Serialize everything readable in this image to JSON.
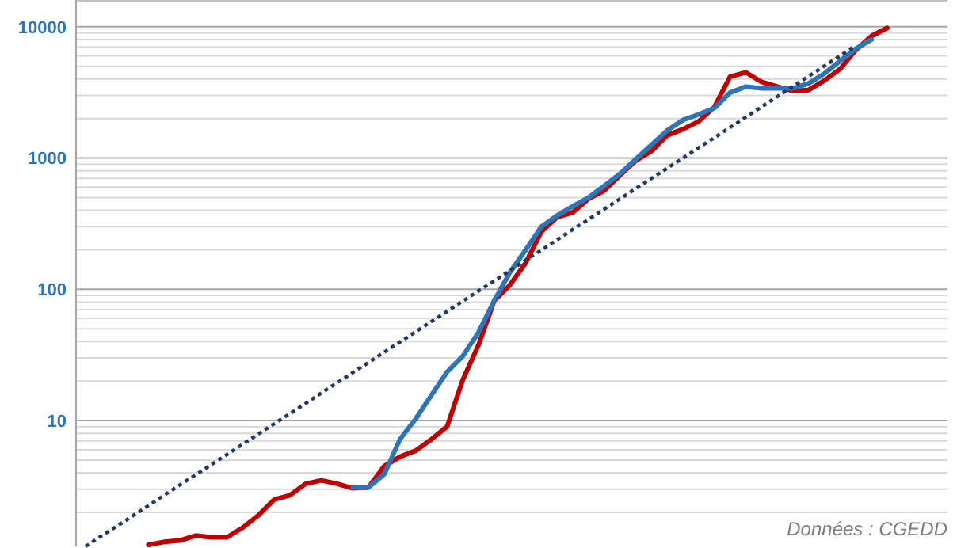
{
  "chart_data": {
    "type": "line",
    "log": "y",
    "grid": "y",
    "tick_labels": "y",
    "ylim": [
      1.1,
      16000
    ],
    "yticks": [
      {
        "value": 2,
        "label": null
      },
      {
        "value": 3,
        "label": null
      },
      {
        "value": 4,
        "label": null
      },
      {
        "value": 5,
        "label": null
      },
      {
        "value": 6,
        "label": null
      },
      {
        "value": 7,
        "label": null
      },
      {
        "value": 8,
        "label": null
      },
      {
        "value": 9,
        "label": null
      },
      10,
      {
        "value": 20,
        "label": null
      },
      {
        "value": 30,
        "label": null
      },
      {
        "value": 40,
        "label": null
      },
      {
        "value": 50,
        "label": null
      },
      {
        "value": 60,
        "label": null
      },
      {
        "value": 70,
        "label": null
      },
      {
        "value": 80,
        "label": null
      },
      {
        "value": 90,
        "label": null
      },
      100,
      {
        "value": 200,
        "label": null
      },
      {
        "value": 300,
        "label": null
      },
      {
        "value": 400,
        "label": null
      },
      {
        "value": 500,
        "label": null
      },
      {
        "value": 600,
        "label": null
      },
      {
        "value": 700,
        "label": null
      },
      {
        "value": 800,
        "label": null
      },
      {
        "value": 900,
        "label": null
      },
      1000,
      {
        "value": 2000,
        "label": null
      },
      {
        "value": 3000,
        "label": null
      },
      {
        "value": 4000,
        "label": null
      },
      {
        "value": 5000,
        "label": null
      },
      {
        "value": 6000,
        "label": null
      },
      {
        "value": 7000,
        "label": null
      },
      {
        "value": 8000,
        "label": null
      },
      {
        "value": 9000,
        "label": null
      },
      10000
    ],
    "categories": [
      null,
      null,
      null,
      null,
      null,
      null,
      null,
      null,
      null,
      null,
      null,
      null,
      null,
      null,
      null,
      null,
      null,
      null,
      null,
      null,
      null,
      null,
      null,
      null,
      null,
      null,
      null,
      null,
      null,
      null,
      null,
      null,
      null,
      null,
      null,
      null,
      null,
      null,
      null,
      null,
      null,
      null,
      null,
      null,
      null,
      null,
      null,
      null,
      null,
      null,
      null,
      null
    ],
    "series": [
      {
        "color": "#c00000",
        "values": [
          null,
          null,
          null,
          null,
          1.13,
          1.19,
          1.22,
          1.33,
          1.29,
          1.29,
          1.53,
          1.9,
          2.5,
          2.7,
          3.3,
          3.5,
          3.3,
          3.05,
          3.1,
          4.5,
          5.3,
          5.9,
          7.2,
          9,
          20.5,
          37.7,
          82,
          108,
          159,
          275,
          355,
          385,
          490,
          565,
          740,
          955,
          1130,
          1490,
          1660,
          1900,
          2450,
          4170,
          4500,
          3800,
          3500,
          3240,
          3300,
          3900,
          4770,
          6650,
          8500,
          9800
        ]
      },
      {
        "color": "#2e75b6",
        "values": [
          null,
          null,
          null,
          null,
          null,
          null,
          null,
          null,
          null,
          null,
          null,
          null,
          null,
          null,
          null,
          null,
          null,
          3.1,
          3.1,
          3.9,
          7.2,
          10.3,
          15.6,
          23.5,
          31,
          47,
          82,
          135,
          200,
          300,
          365,
          430,
          500,
          615,
          760,
          980,
          1260,
          1620,
          1950,
          2150,
          2400,
          3150,
          3500,
          3400,
          3400,
          3400,
          3700,
          4400,
          5500,
          6800,
          8000,
          null
        ]
      },
      {
        "color": "#1f3864",
        "line_style": "dotted",
        "values": [
          1.1,
          1.32,
          1.57,
          1.88,
          2.25,
          2.7,
          3.23,
          3.86,
          4.62,
          5.52,
          6.61,
          7.91,
          9.46,
          11.3,
          13.5,
          16.2,
          19.4,
          23.2,
          27.7,
          33.2,
          39.7,
          47.5,
          56.8,
          68,
          81.3,
          97.3,
          116,
          139,
          167,
          199,
          239,
          286,
          341,
          409,
          489,
          585,
          700,
          837,
          1000,
          1200,
          1430,
          1710,
          2050,
          2450,
          2940,
          3510,
          4200,
          5030,
          6010,
          7200,
          null,
          null
        ]
      }
    ],
    "annotations": [
      "Données : CGEDD"
    ]
  }
}
